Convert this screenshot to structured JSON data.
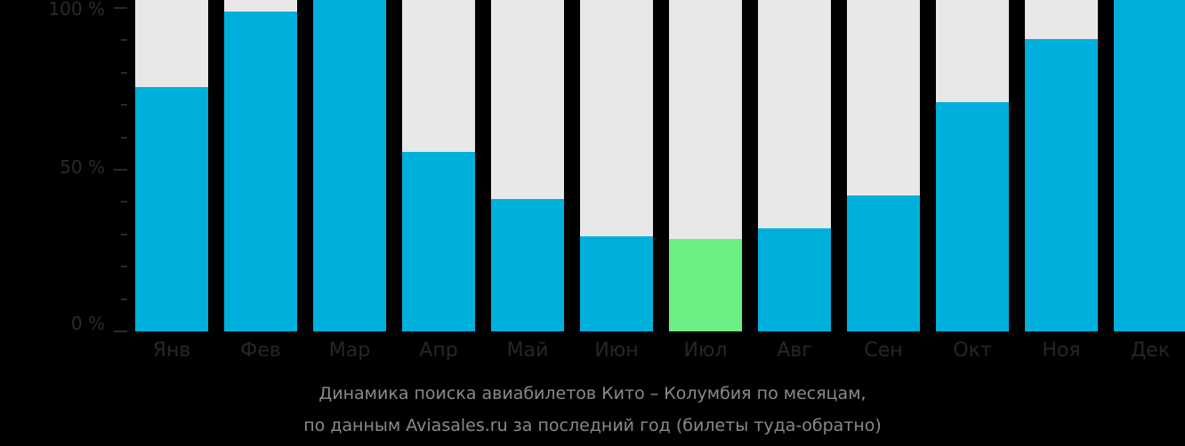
{
  "chart_data": {
    "type": "bar",
    "stacked_percent": true,
    "title": "Динамика поиска авиабилетов Кито – Колумбия по месяцам,",
    "subtitle": "по данным Aviasales.ru за последний год (билеты туда-обратно)",
    "xlabel": "",
    "ylabel": "",
    "ylim": [
      0,
      100
    ],
    "y_ticks": [
      "0 %",
      "50 %",
      "100 %"
    ],
    "grid": false,
    "categories": [
      "Янв",
      "Фев",
      "Мар",
      "Апр",
      "Май",
      "Июн",
      "Июл",
      "Авг",
      "Сен",
      "Окт",
      "Ноя",
      "Дек"
    ],
    "values": [
      75.5,
      99,
      100,
      55.5,
      41,
      29.5,
      28.5,
      32,
      42,
      71,
      90.5,
      100
    ],
    "highlight_index": 6,
    "colors": {
      "bar": "#00b0dc",
      "highlight": "#6cf083",
      "background_track": "#e8e8e8",
      "page_bg": "#000000"
    }
  },
  "axis": {
    "y_labels": {
      "top": "100 %",
      "mid": "50 %",
      "bottom": "0 %"
    }
  },
  "caption": {
    "line1": "Динамика поиска авиабилетов Кито – Колумбия по месяцам,",
    "line2": "по данным Aviasales.ru за последний год (билеты туда-обратно)"
  }
}
